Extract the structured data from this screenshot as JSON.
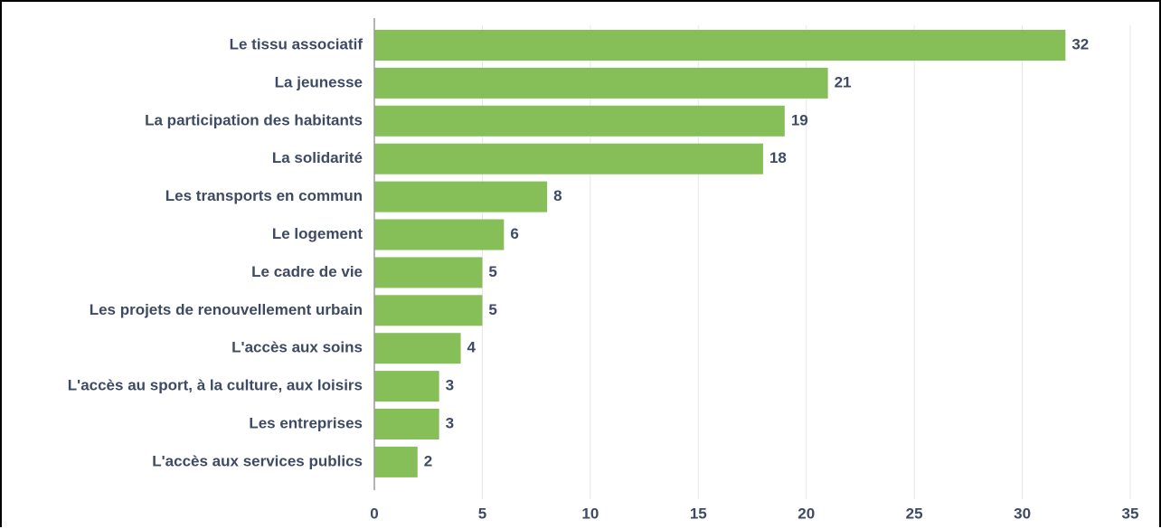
{
  "chart_data": {
    "type": "bar",
    "orientation": "horizontal",
    "categories": [
      "Le tissu associatif",
      "La jeunesse",
      "La participation des habitants",
      "La solidarité",
      "Les transports en commun",
      "Le logement",
      "Le cadre de vie",
      "Les projets de renouvellement urbain",
      "L'accès aux soins",
      "L'accès au sport, à la culture, aux loisirs",
      "Les entreprises",
      "L'accès aux services publics"
    ],
    "values": [
      32,
      21,
      19,
      18,
      8,
      6,
      5,
      5,
      4,
      3,
      3,
      2
    ],
    "xlim": [
      0,
      35
    ],
    "xticks": [
      0,
      5,
      10,
      15,
      20,
      25,
      30,
      35
    ],
    "data_labels": true,
    "grid": "vertical",
    "legend": "none",
    "title": "",
    "xlabel": "",
    "ylabel": "",
    "colors": {
      "bar": "#86bf57",
      "text": "#3e4a63",
      "grid": "#e6e6e6",
      "axis": "#9a9a9a"
    }
  }
}
